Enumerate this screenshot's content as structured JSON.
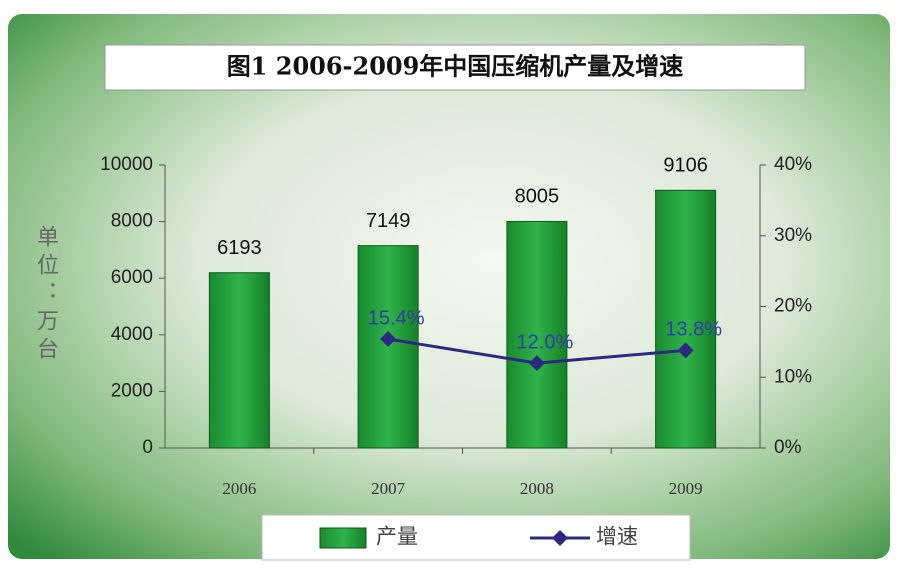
{
  "chart_data": {
    "type": "bar",
    "title": "图1 2006-2009年中国压缩机产量及增速",
    "y_label": "单位：万台",
    "categories": [
      "2006",
      "2007",
      "2008",
      "2009"
    ],
    "series": [
      {
        "name": "产量",
        "type": "bar",
        "color": "#1f9b37",
        "values": [
          6193,
          7149,
          8005,
          9106
        ]
      },
      {
        "name": "增速",
        "type": "line",
        "axis": "y2",
        "color": "#2b2a80",
        "values": [
          null,
          15.4,
          12.0,
          13.8
        ],
        "value_labels": [
          null,
          "15.4%",
          "12.0%",
          "13.8%"
        ]
      }
    ],
    "ylim": [
      0,
      10000
    ],
    "yticks": [
      0,
      2000,
      4000,
      6000,
      8000,
      10000
    ],
    "y2lim": [
      0,
      40
    ],
    "y2ticks": [
      {
        "value": 0,
        "label": "0%"
      },
      {
        "value": 10,
        "label": "10%"
      },
      {
        "value": 20,
        "label": "20%"
      },
      {
        "value": 30,
        "label": "30%"
      },
      {
        "value": 40,
        "label": "40%"
      }
    ],
    "legend": "bottom"
  }
}
